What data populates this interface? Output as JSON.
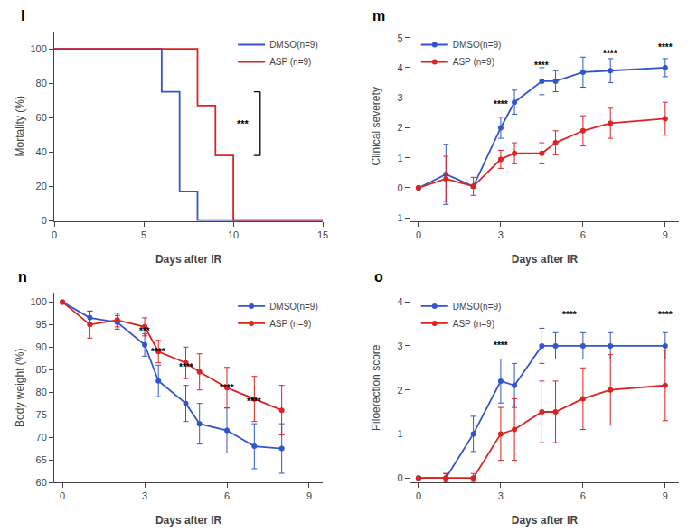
{
  "chart_data": [
    {
      "type": "step",
      "title": "l",
      "xlabel": "Days after IR",
      "ylabel": "Mortality (%)",
      "series": [
        {
          "name": "DMSO(n=9)",
          "color": "#3355cc",
          "x": [
            0,
            6,
            6,
            7,
            7,
            8,
            8,
            15
          ],
          "values": [
            100,
            100,
            75,
            75,
            17,
            17,
            0,
            0
          ]
        },
        {
          "name": "ASP (n=9)",
          "color": "#dd2222",
          "x": [
            0,
            8,
            8,
            9,
            9,
            10,
            10,
            15
          ],
          "values": [
            100,
            100,
            67,
            67,
            38,
            38,
            0,
            0
          ]
        }
      ],
      "xlim": [
        0,
        15
      ],
      "ylim": [
        0,
        110
      ],
      "xticks": [
        0,
        5,
        10,
        15
      ],
      "yticks": [
        0,
        20,
        40,
        60,
        80,
        100
      ],
      "grid": false,
      "legend": "upper right",
      "bracket": {
        "x": 11.5,
        "y": [
          38,
          75
        ],
        "text": "***"
      }
    },
    {
      "type": "line",
      "title": "m",
      "marker": "circle",
      "xlabel": "Days after IR",
      "ylabel": "Clinical severety",
      "series": [
        {
          "name": "DMSO(n=9)",
          "color": "#3355cc",
          "x": [
            0,
            1,
            2,
            3,
            3.5,
            4.5,
            5,
            6,
            7,
            9
          ],
          "values": [
            0,
            0.45,
            0.05,
            2.0,
            2.85,
            3.55,
            3.55,
            3.85,
            3.9,
            4.0
          ],
          "errors": [
            0,
            1.0,
            0.05,
            0.35,
            0.4,
            0.45,
            0.35,
            0.5,
            0.4,
            0.3
          ]
        },
        {
          "name": "ASP (n=9)",
          "color": "#dd2222",
          "x": [
            0,
            1,
            2,
            3,
            3.5,
            4.5,
            5,
            6,
            7,
            9
          ],
          "values": [
            0,
            0.3,
            0.05,
            0.95,
            1.15,
            1.15,
            1.5,
            1.9,
            2.15,
            2.3
          ],
          "errors": [
            0,
            0.75,
            0.3,
            0.3,
            0.35,
            0.35,
            0.4,
            0.5,
            0.5,
            0.55
          ]
        }
      ],
      "xlim": [
        -0.3,
        9.5
      ],
      "ylim": [
        -1.1,
        5.2
      ],
      "xticks": [
        0,
        3,
        6,
        9
      ],
      "yticks": [
        -1,
        0,
        1,
        2,
        3,
        4,
        5
      ],
      "grid": false,
      "legend": "upper left",
      "annotations": [
        {
          "x": 3.0,
          "y": 2.55,
          "text": "****"
        },
        {
          "x": 4.5,
          "y": 3.85,
          "text": "****"
        },
        {
          "x": 7.0,
          "y": 4.25,
          "text": "****"
        },
        {
          "x": 9.0,
          "y": 4.45,
          "text": "****"
        }
      ]
    },
    {
      "type": "line",
      "title": "n",
      "marker": "circle",
      "xlabel": "Days after IR",
      "ylabel": "Body weight (%)",
      "series": [
        {
          "name": "DMSO(n=9)",
          "color": "#3355cc",
          "x": [
            0,
            1,
            2,
            3,
            3.5,
            4.5,
            5,
            6,
            7,
            8
          ],
          "values": [
            100,
            96.5,
            95.5,
            90.5,
            82.5,
            77.5,
            73.0,
            71.5,
            68.0,
            67.5
          ],
          "errors": [
            0,
            1.5,
            1.5,
            2.5,
            3.5,
            4.0,
            4.5,
            5.0,
            5.0,
            5.5
          ]
        },
        {
          "name": "ASP (n=9)",
          "color": "#dd2222",
          "x": [
            0,
            1,
            2,
            3,
            3.5,
            4.5,
            5,
            6,
            7,
            8
          ],
          "values": [
            100,
            95.0,
            96.0,
            94.5,
            89.0,
            86.5,
            84.5,
            81.0,
            78.5,
            76.0
          ],
          "errors": [
            0,
            3.0,
            1.5,
            2.0,
            2.5,
            3.5,
            4.0,
            4.5,
            5.0,
            5.5
          ]
        }
      ],
      "xlim": [
        -0.3,
        9.5
      ],
      "ylim": [
        60,
        102
      ],
      "xticks": [
        0,
        3,
        6,
        9
      ],
      "yticks": [
        60,
        65,
        70,
        75,
        80,
        85,
        90,
        95,
        100
      ],
      "grid": false,
      "legend": "upper right",
      "annotations": [
        {
          "x": 3.0,
          "y": 92.0,
          "text": "***"
        },
        {
          "x": 3.5,
          "y": 87.5,
          "text": "****"
        },
        {
          "x": 4.5,
          "y": 84.0,
          "text": "****"
        },
        {
          "x": 6.0,
          "y": 79.5,
          "text": "****"
        },
        {
          "x": 7.0,
          "y": 76.5,
          "text": "****"
        }
      ]
    },
    {
      "type": "line",
      "title": "o",
      "marker": "circle",
      "xlabel": "Days after IR",
      "ylabel": "Piloerection score",
      "series": [
        {
          "name": "DMSO(n=9)",
          "color": "#3355cc",
          "x": [
            0,
            1,
            2,
            3,
            3.5,
            4.5,
            5,
            6,
            7,
            9
          ],
          "values": [
            0,
            0.0,
            1.0,
            2.2,
            2.1,
            3.0,
            3.0,
            3.0,
            3.0,
            3.0
          ],
          "errors": [
            0,
            0.1,
            0.4,
            0.5,
            0.5,
            0.4,
            0.3,
            0.3,
            0.3,
            0.3
          ]
        },
        {
          "name": "ASP (n=9)",
          "color": "#dd2222",
          "x": [
            0,
            1,
            2,
            3,
            3.5,
            4.5,
            5,
            6,
            7,
            9
          ],
          "values": [
            0,
            0.0,
            0.0,
            1.0,
            1.1,
            1.5,
            1.5,
            1.8,
            2.0,
            2.1
          ],
          "errors": [
            0,
            0.1,
            0.1,
            0.6,
            0.7,
            0.7,
            0.7,
            0.7,
            0.8,
            0.8
          ]
        }
      ],
      "xlim": [
        -0.3,
        9.5
      ],
      "ylim": [
        -0.1,
        4.2
      ],
      "xticks": [
        0,
        3,
        6,
        9
      ],
      "yticks": [
        0,
        1,
        2,
        3,
        4
      ],
      "grid": false,
      "legend": "upper left",
      "annotations": [
        {
          "x": 3.0,
          "y": 2.85,
          "text": "****"
        },
        {
          "x": 5.5,
          "y": 3.55,
          "text": "****"
        },
        {
          "x": 9.0,
          "y": 3.55,
          "text": "****"
        }
      ]
    }
  ]
}
